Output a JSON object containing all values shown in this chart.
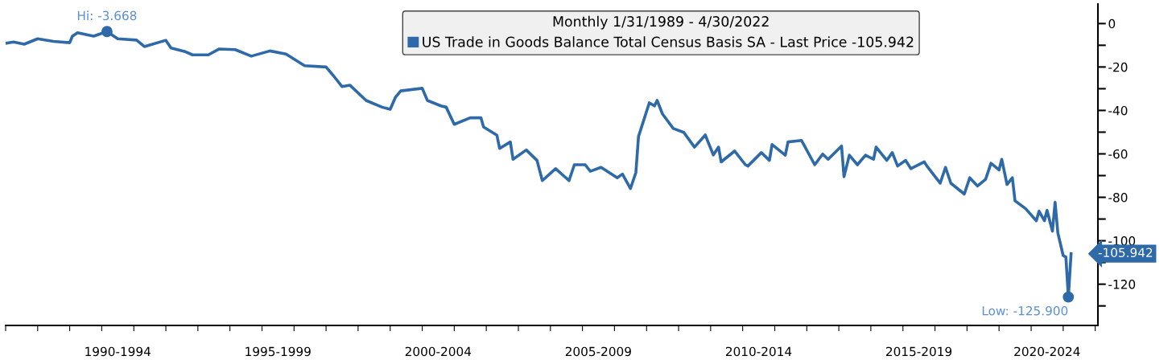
{
  "chart_data": {
    "type": "line",
    "legend_title": "Monthly 1/31/1989 - 4/30/2022",
    "x": [
      "1989-01",
      "1989-04",
      "1989-08",
      "1990-01",
      "1990-07",
      "1991-01",
      "1991-02",
      "1991-04",
      "1991-10",
      "1992-03",
      "1992-07",
      "1993-02",
      "1993-05",
      "1994-01",
      "1994-03",
      "1994-08",
      "1994-11",
      "1995-05",
      "1995-09",
      "1996-03",
      "1996-09",
      "1997-04",
      "1997-10",
      "1998-05",
      "1999-01",
      "1999-04",
      "1999-07",
      "1999-10",
      "2000-04",
      "2000-10",
      "2001-01",
      "2001-03",
      "2001-05",
      "2002-01",
      "2002-03",
      "2002-08",
      "2002-10",
      "2003-01",
      "2003-07",
      "2003-11",
      "2003-12",
      "2004-05",
      "2004-06",
      "2004-10",
      "2004-11",
      "2005-04",
      "2005-08",
      "2005-10",
      "2006-03",
      "2006-08",
      "2006-10",
      "2007-02",
      "2007-04",
      "2007-08",
      "2008-02",
      "2008-04",
      "2008-07",
      "2008-09",
      "2008-10",
      "2009-02",
      "2009-04",
      "2009-05",
      "2009-07",
      "2009-11",
      "2010-03",
      "2010-07",
      "2010-11",
      "2011-02",
      "2011-04",
      "2011-05",
      "2011-10",
      "2012-02",
      "2012-03",
      "2012-08",
      "2012-11",
      "2012-12",
      "2013-05",
      "2013-06",
      "2013-11",
      "2014-04",
      "2014-07",
      "2014-09",
      "2015-02",
      "2015-03",
      "2015-05",
      "2015-08",
      "2015-11",
      "2016-02",
      "2016-03",
      "2016-07",
      "2016-09",
      "2016-11",
      "2017-02",
      "2017-04",
      "2017-09",
      "2017-10",
      "2018-03",
      "2018-05",
      "2018-07",
      "2018-12",
      "2019-02",
      "2019-05",
      "2019-08",
      "2019-10",
      "2020-01",
      "2020-02",
      "2020-04",
      "2020-06",
      "2020-07",
      "2020-11",
      "2021-03",
      "2021-04",
      "2021-06",
      "2021-07",
      "2021-09",
      "2021-10",
      "2021-11",
      "2022-01",
      "2022-02",
      "2022-03",
      "2022-04"
    ],
    "series": [
      {
        "name": "US Trade in Goods Balance Total Census Basis SA - Last Price -105.942",
        "color": "#2e6aa8",
        "values": [
          -9.1,
          -8.5,
          -9.5,
          -7,
          -8.2,
          -8.8,
          -5.8,
          -4.2,
          -5.8,
          -3.668,
          -7,
          -7.6,
          -10.6,
          -7.7,
          -11.3,
          -12.8,
          -14.4,
          -14.4,
          -11.7,
          -12,
          -15,
          -12.6,
          -14,
          -19.4,
          -20,
          -24.3,
          -29,
          -28.4,
          -35.4,
          -38.5,
          -39.5,
          -34,
          -31,
          -29.8,
          -35.4,
          -37.9,
          -38.5,
          -46.4,
          -43.4,
          -43.4,
          -47.6,
          -51.4,
          -57.5,
          -54.5,
          -62.5,
          -58.2,
          -63,
          -72.3,
          -66.8,
          -72.3,
          -65,
          -65,
          -68,
          -66.2,
          -71,
          -69.3,
          -76,
          -68.6,
          -52,
          -36.5,
          -37.9,
          -35.4,
          -41.6,
          -48.3,
          -50.1,
          -56.9,
          -51.3,
          -60.5,
          -56.9,
          -63.7,
          -58.7,
          -65,
          -65.6,
          -59.4,
          -63,
          -55.7,
          -60.6,
          -54.5,
          -53.8,
          -65,
          -60.1,
          -62.5,
          -56.4,
          -70.5,
          -60.6,
          -65,
          -60.6,
          -62.5,
          -56.9,
          -63,
          -59.4,
          -65.6,
          -63,
          -66.8,
          -63.7,
          -65.6,
          -73.5,
          -66.2,
          -73.5,
          -78.5,
          -71,
          -74.8,
          -71.7,
          -64.3,
          -67.4,
          -62.5,
          -74.1,
          -71,
          -81.6,
          -85.3,
          -90.8,
          -86.4,
          -90.8,
          -86,
          -95.6,
          -82.3,
          -96.3,
          -106.8,
          -107.5,
          -125.9,
          -105.942
        ]
      }
    ],
    "annotations": [
      {
        "text": "Hi: -3.668",
        "x": "1992-03",
        "y": -3.668
      },
      {
        "text": "Low: -125.900",
        "x": "2022-03",
        "y": -125.9
      },
      "-105.942"
    ],
    "xlim": [
      "1989-01",
      "2023-02"
    ],
    "xticks": [
      {
        "value": "1989-01",
        "label": null
      },
      {
        "value": "1990-01",
        "label": null
      },
      {
        "value": "1991-01",
        "label": null
      },
      {
        "value": "1992-01",
        "label": null
      },
      {
        "value": "1993-01",
        "label": null
      },
      {
        "value": "1994-01",
        "label": null
      },
      {
        "value": "1995-01",
        "label": null
      },
      {
        "value": "1996-01",
        "label": null
      },
      {
        "value": "1997-01",
        "label": null
      },
      {
        "value": "1998-01",
        "label": null
      },
      {
        "value": "1999-01",
        "label": null
      },
      {
        "value": "2000-01",
        "label": null
      },
      {
        "value": "2001-01",
        "label": null
      },
      {
        "value": "2002-01",
        "label": null
      },
      {
        "value": "2003-01",
        "label": null
      },
      {
        "value": "2004-01",
        "label": null
      },
      {
        "value": "2005-01",
        "label": null
      },
      {
        "value": "2006-01",
        "label": null
      },
      {
        "value": "2007-01",
        "label": null
      },
      {
        "value": "2008-01",
        "label": null
      },
      {
        "value": "2009-01",
        "label": null
      },
      {
        "value": "2010-01",
        "label": null
      },
      {
        "value": "2011-01",
        "label": null
      },
      {
        "value": "2012-01",
        "label": null
      },
      {
        "value": "2013-01",
        "label": null
      },
      {
        "value": "2014-01",
        "label": null
      },
      {
        "value": "2015-01",
        "label": null
      },
      {
        "value": "2016-01",
        "label": null
      },
      {
        "value": "2017-01",
        "label": null
      },
      {
        "value": "2018-01",
        "label": null
      },
      {
        "value": "2019-01",
        "label": null
      },
      {
        "value": "2020-01",
        "label": null
      },
      {
        "value": "2021-01",
        "label": null
      },
      {
        "value": "2022-01",
        "label": null
      },
      {
        "value": "2023-01",
        "label": null
      },
      {
        "value": "1992-07",
        "label": "1990-1994"
      },
      {
        "value": "1997-07",
        "label": "1995-1999"
      },
      {
        "value": "2002-07",
        "label": "2000-2004"
      },
      {
        "value": "2007-07",
        "label": "2005-2009"
      },
      {
        "value": "2012-07",
        "label": "2010-2014"
      },
      {
        "value": "2017-07",
        "label": "2015-2019"
      },
      {
        "value": "2021-07",
        "label": "2020-2024"
      }
    ],
    "ylim": [
      -139,
      9
    ],
    "yticks": [
      0,
      {
        "value": -10,
        "label": null
      },
      -20,
      {
        "value": -30,
        "label": null
      },
      -40,
      {
        "value": -50,
        "label": null
      },
      -60,
      {
        "value": -70,
        "label": null
      },
      -80,
      {
        "value": -90,
        "label": null
      },
      -100,
      {
        "value": -110,
        "label": null
      },
      -120,
      {
        "value": -130,
        "label": null
      }
    ],
    "grid": false,
    "legend": "top",
    "line_style": "solid",
    "marker": "none"
  }
}
